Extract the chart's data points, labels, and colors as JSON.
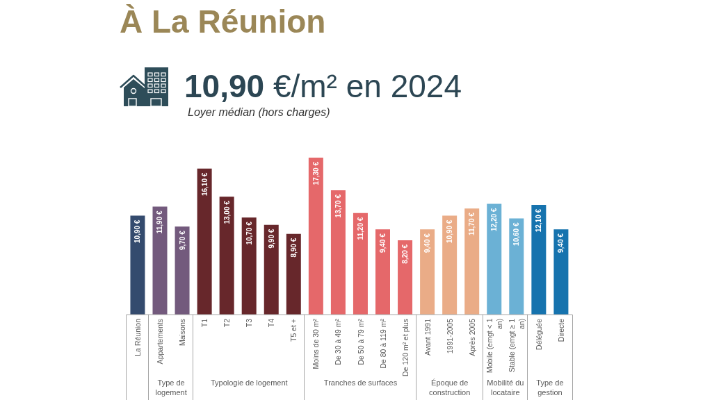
{
  "chart_data": {
    "type": "bar",
    "title": "À La Réunion",
    "subtitle": "10,90 €/m² en 2024",
    "ylabel": "Loyer médian (hors charges)",
    "categories": [
      "La Réunion",
      "Appartements",
      "Maisons",
      "T1",
      "T2",
      "T3",
      "T4",
      "T5 et +",
      "Moins de 30 m²",
      "De 30 à 49 m²",
      "De 50 à 79 m²",
      "De 80 à 119 m²",
      "De 120 m² et plus",
      "Avant 1991",
      "1991-2005",
      "Après 2005",
      "Mobile (emgt < 1 an)",
      "Stable (emgt ≥ 1 an)",
      "Déléguée",
      "Directe"
    ],
    "values": [
      10.9,
      11.9,
      9.7,
      16.1,
      13.0,
      10.7,
      9.9,
      8.9,
      17.3,
      13.7,
      11.2,
      9.4,
      8.2,
      9.4,
      10.9,
      11.7,
      12.2,
      10.6,
      12.1,
      9.4
    ],
    "colors": [
      "#344b6e",
      "#735a7d",
      "#735a7d",
      "#67272b",
      "#67272b",
      "#67272b",
      "#67272b",
      "#67272b",
      "#e5686a",
      "#e5686a",
      "#e5686a",
      "#e5686a",
      "#e5686a",
      "#eaac87",
      "#eaac87",
      "#eaac87",
      "#6bb1d5",
      "#6bb1d5",
      "#1673ae",
      "#1673ae"
    ],
    "value_labels": [
      "10,90 €",
      "11,90 €",
      "9,70 €",
      "16,10 €",
      "13,00 €",
      "10,70 €",
      "9,90 €",
      "8,90 €",
      "17,30 €",
      "13,70 €",
      "11,20 €",
      "9,40 €",
      "8,20 €",
      "9,40 €",
      "10,90 €",
      "11,70 €",
      "12,20 €",
      "10,60 €",
      "12,10 €",
      "9,40 €"
    ],
    "annotations": [
      "Type de logement",
      "Typologie de logement",
      "Tranches de surfaces",
      "Époque de construction",
      "Mobilité du locataire",
      "Type de gestion"
    ]
  }
}
